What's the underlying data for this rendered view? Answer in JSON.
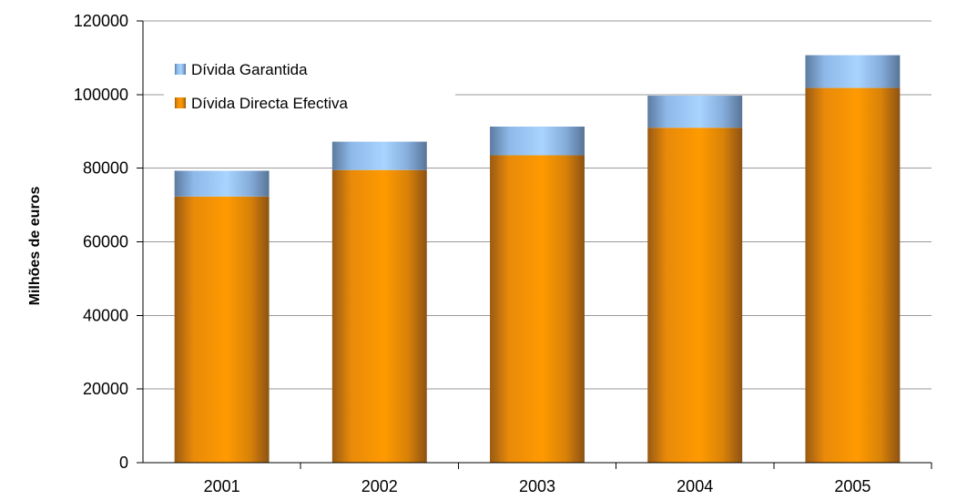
{
  "chart_data": {
    "type": "bar",
    "stacked": true,
    "categories": [
      "2001",
      "2002",
      "2003",
      "2004",
      "2005"
    ],
    "series": [
      {
        "name": "Dívida Directa Efectiva",
        "values": [
          72300,
          79500,
          83500,
          91000,
          101800
        ],
        "color": "#FF9900"
      },
      {
        "name": "Dívida Garantida",
        "values": [
          7000,
          7700,
          7800,
          8700,
          8900
        ],
        "color": "#99CCFF"
      }
    ],
    "title": "",
    "xlabel": "",
    "ylabel": "Milhões de euros",
    "ylim": [
      0,
      120000
    ],
    "yticks": [
      "0",
      "20000",
      "40000",
      "60000",
      "80000",
      "100000",
      "120000"
    ],
    "grid": true,
    "legend_position": "top-left"
  }
}
